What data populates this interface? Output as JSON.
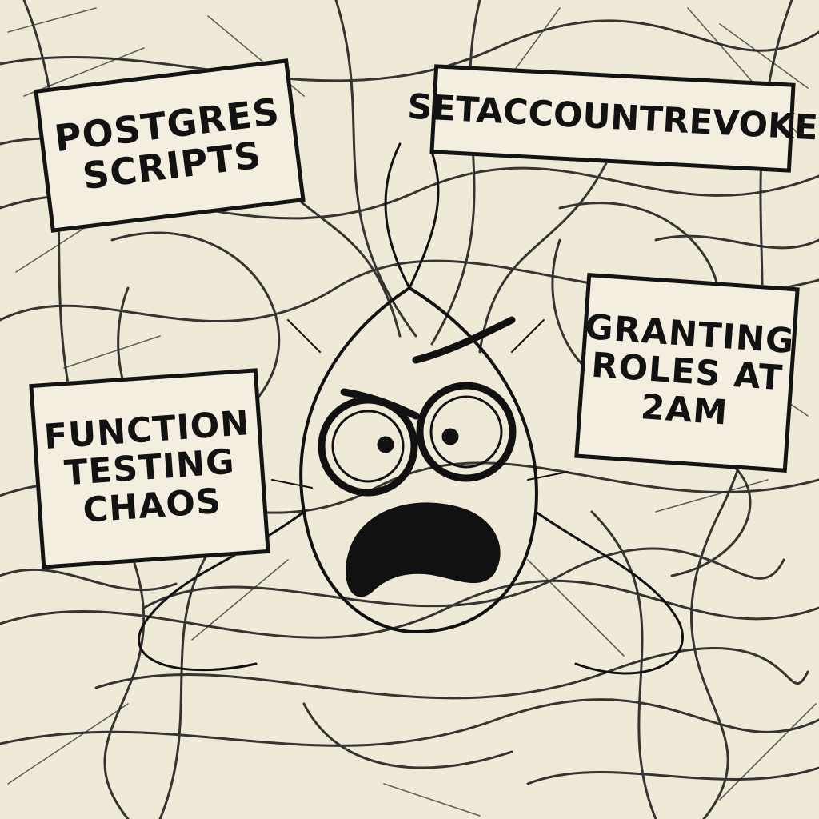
{
  "signs": {
    "postgres": {
      "line1": "POSTGRES",
      "line2": "SCRIPTS"
    },
    "revoke": {
      "line1": "SETACCOUNTREVOKE"
    },
    "granting": {
      "line1": "GRANTING",
      "line2": "ROLES AT",
      "line3": "2AM"
    },
    "function": {
      "line1": "FUNCTION",
      "line2": "TESTING",
      "line3": "CHAOS"
    }
  },
  "colors": {
    "paper": "#efe9d8",
    "ink": "#141414"
  },
  "figure": {
    "icon": "stressed-scribble-creature-icon",
    "expression": "panicked"
  }
}
